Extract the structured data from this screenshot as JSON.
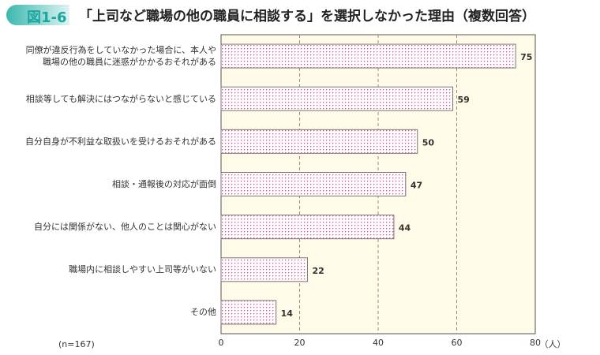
{
  "figure_label": "図1-6",
  "chart_data": {
    "type": "bar",
    "orientation": "horizontal",
    "title": "「上司など職場の他の職員に相談する」を選択しなかった理由（複数回答）",
    "categories": [
      "同僚が違反行為をしていなかった場合に、本人や\n職場の他の職員に迷惑がかかるおそれがある",
      "相談等しても解決にはつながらないと感じている",
      "自分自身が不利益な取扱いを受けるおそれがある",
      "相談・通報後の対応が面倒",
      "自分には関係がない、他人のことは関心がない",
      "職場内に相談しやすい上司等がいない",
      "その他"
    ],
    "values": [
      75,
      59,
      50,
      47,
      44,
      22,
      14
    ],
    "xlim": [
      0,
      80
    ],
    "xticks": [
      "0",
      "20",
      "40",
      "60",
      "80"
    ],
    "unit": "（人）",
    "note": "(n=167)",
    "grid": "vertical dashed",
    "colors": {
      "bar_dots": "#e8409a",
      "plot_bg": "#fffbe8",
      "grid": "#a08b70"
    }
  }
}
